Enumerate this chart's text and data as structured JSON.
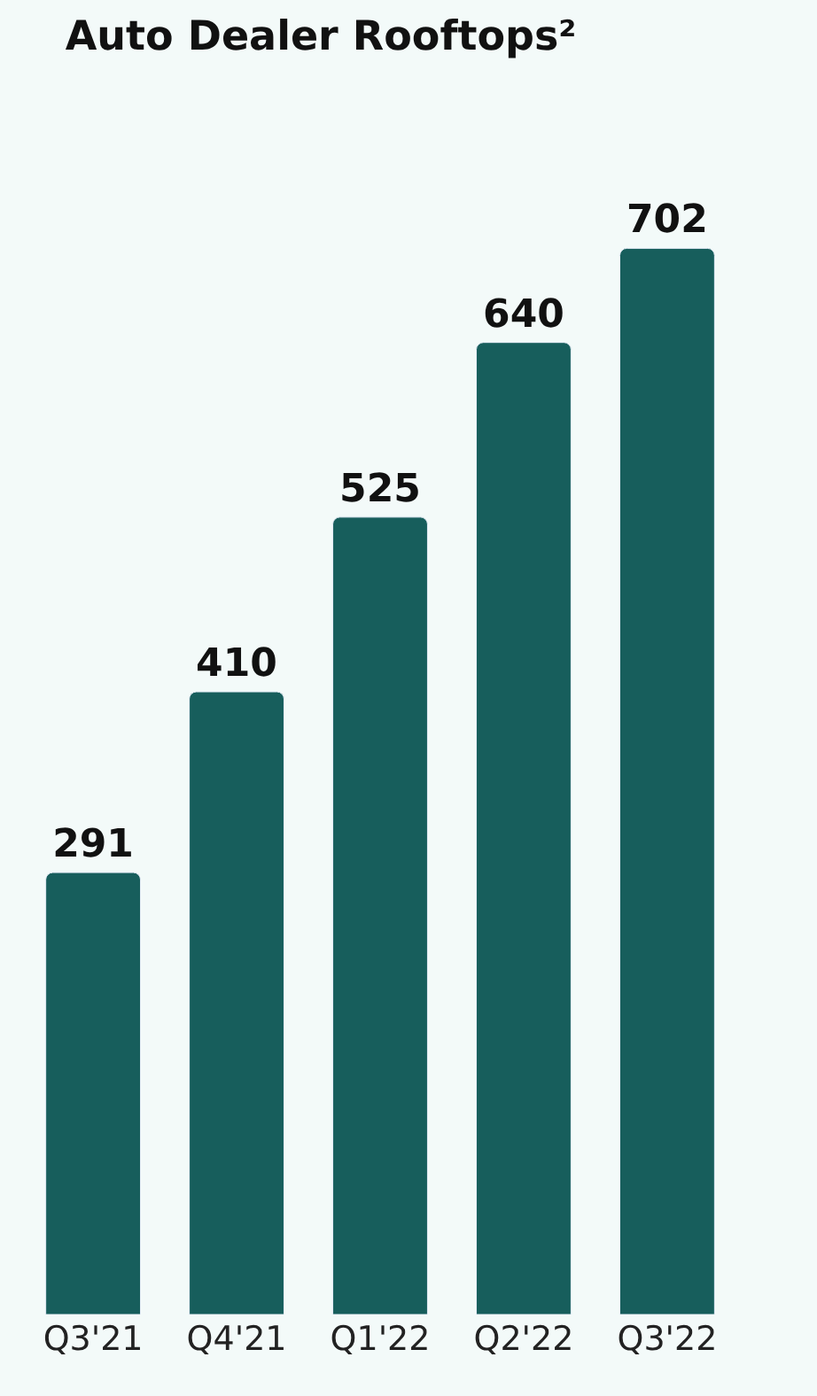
{
  "chart_data": {
    "type": "bar",
    "title": "Auto Dealer Rooftops²",
    "categories": [
      "Q3'21",
      "Q4'21",
      "Q1'22",
      "Q2'22",
      "Q3'22"
    ],
    "values": [
      291,
      410,
      525,
      640,
      702
    ],
    "color": "#175e5c",
    "data_labels": true
  }
}
